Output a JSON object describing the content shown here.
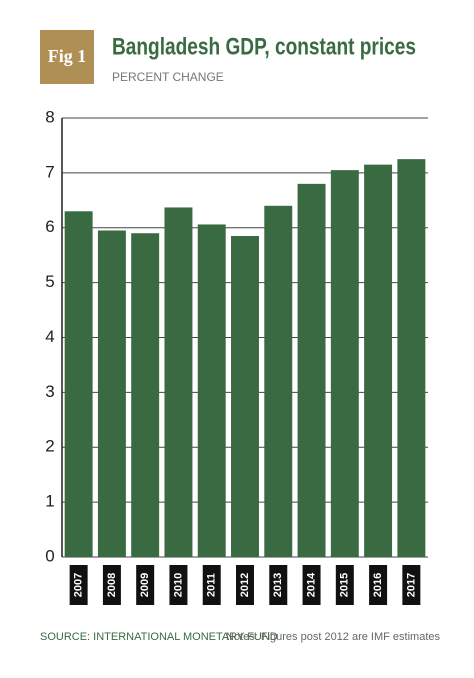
{
  "chart_data": {
    "type": "bar",
    "badge": "Fig 1",
    "title": "Bangladesh GDP, constant prices",
    "subtitle": "PERCENT CHANGE",
    "categories": [
      "2007",
      "2008",
      "2009",
      "2010",
      "2011",
      "2012",
      "2013",
      "2014",
      "2015",
      "2016",
      "2017"
    ],
    "values": [
      6.3,
      5.95,
      5.9,
      6.37,
      6.06,
      5.85,
      6.4,
      6.8,
      7.05,
      7.15,
      7.25
    ],
    "color": "#3a6a41",
    "ylim": [
      0,
      8
    ],
    "yticks": [
      0,
      1,
      2,
      3,
      4,
      5,
      6,
      7,
      8
    ],
    "grid": true,
    "source": "SOURCE: INTERNATIONAL MONETARY FUND",
    "note": "Notes: Figures post 2012 are IMF estimates"
  }
}
